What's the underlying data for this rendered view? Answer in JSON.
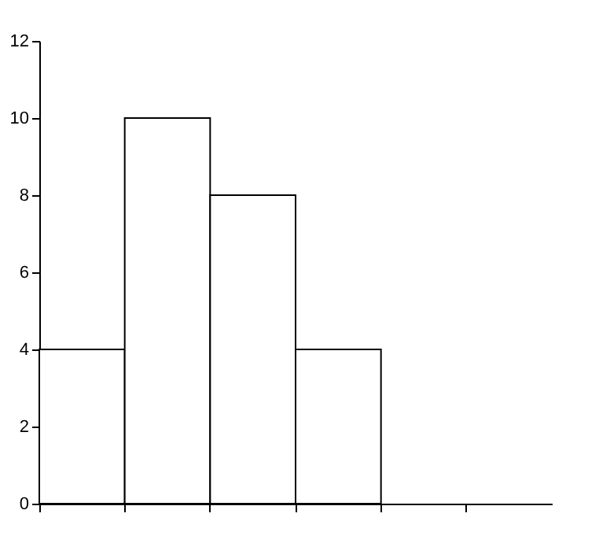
{
  "chart_data": {
    "type": "bar",
    "categories": [
      null,
      null,
      null,
      null,
      null,
      null
    ],
    "values": [
      4,
      10,
      8,
      4,
      null,
      null
    ],
    "color": "#ffffff",
    "ylim": [
      0,
      12
    ],
    "yticks": [
      0,
      2,
      4,
      6,
      8,
      10,
      12
    ],
    "grid": false,
    "tick_labels": "y"
  }
}
